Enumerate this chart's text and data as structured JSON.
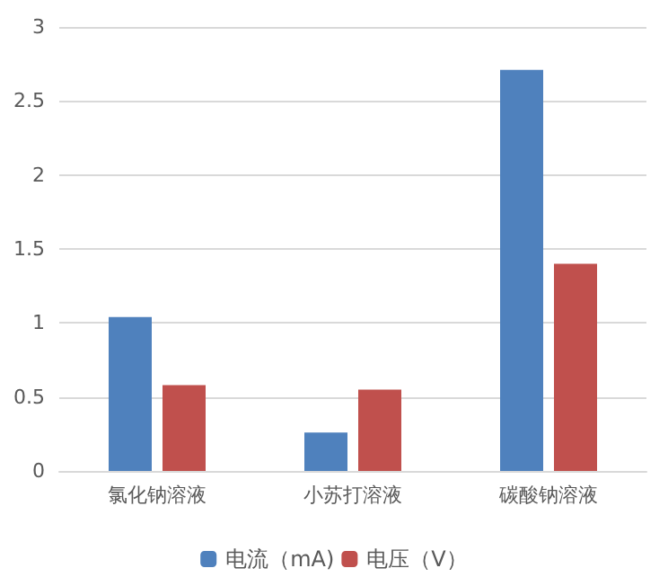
{
  "chart_data": {
    "type": "bar",
    "categories": [
      "氯化钠溶液",
      "小苏打溶液",
      "碳酸钠溶液"
    ],
    "series": [
      {
        "name": "电流（mA)",
        "color": "#4f81bd",
        "values": [
          1.04,
          0.26,
          2.71
        ]
      },
      {
        "name": "电压（V）",
        "color": "#c0504d",
        "values": [
          0.58,
          0.55,
          1.4
        ]
      }
    ],
    "ylim": [
      0,
      3
    ],
    "yticks": [
      0,
      0.5,
      1,
      1.5,
      2,
      2.5,
      3
    ],
    "grid": "y",
    "legend": "bottom"
  }
}
